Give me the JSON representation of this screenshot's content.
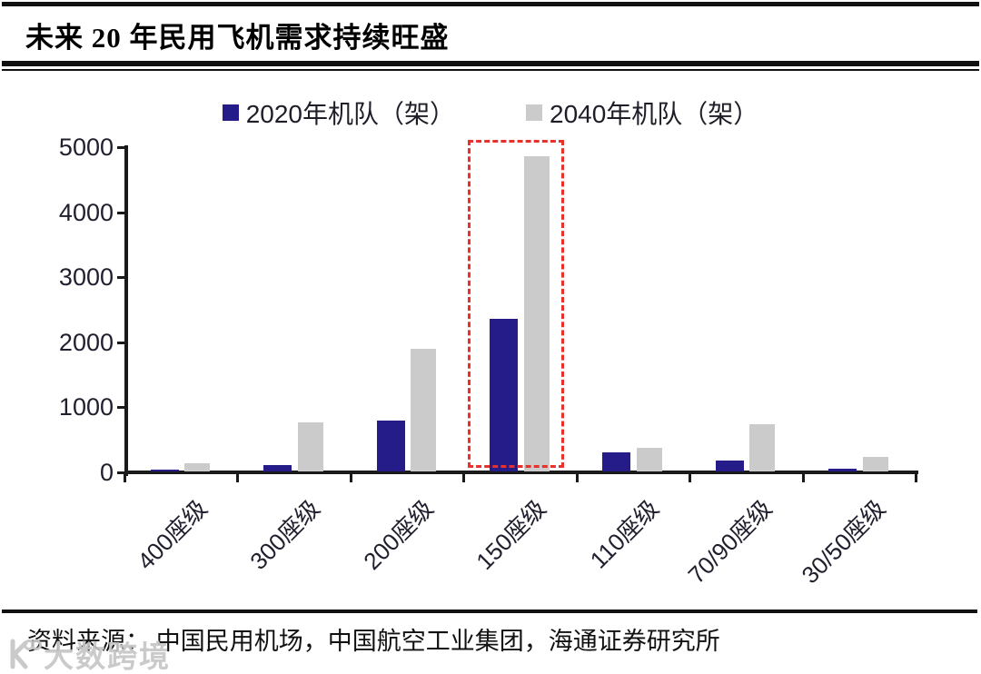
{
  "page": {
    "title": "未来 20 年民用飞机需求持续旺盛",
    "source_note": "资料来源： 中国民用机场，中国航空工业集团，海通证券研究所",
    "watermark": "大数跨境"
  },
  "colors": {
    "series_2020": "#251c8a",
    "series_2040": "#cbcbcb",
    "highlight_red": "#e8312b",
    "axis": "#1a1a1a",
    "tick_text": "#1f1f2e"
  },
  "chart_data": {
    "type": "bar",
    "title": "未来 20 年民用飞机需求持续旺盛",
    "categories": [
      "400座级",
      "300座级",
      "200座级",
      "150座级",
      "110座级",
      "70/90座级",
      "30/50座级"
    ],
    "series": [
      {
        "name": "2020年机队（架）",
        "color_key": "series_2020",
        "values": [
          30,
          100,
          780,
          2340,
          300,
          170,
          40
        ]
      },
      {
        "name": "2040年机队（架）",
        "color_key": "series_2040",
        "values": [
          120,
          760,
          1880,
          4850,
          370,
          720,
          230
        ]
      }
    ],
    "xlabel": "",
    "ylabel": "",
    "ylim": [
      0,
      5000
    ],
    "yticks": [
      0,
      1000,
      2000,
      3000,
      4000,
      5000
    ],
    "grid": false,
    "legend_position": "top-center",
    "annotations": [
      {
        "type": "dashed-box",
        "category": "150座级",
        "note": "red dashed highlight around 150座级 bars"
      }
    ]
  }
}
